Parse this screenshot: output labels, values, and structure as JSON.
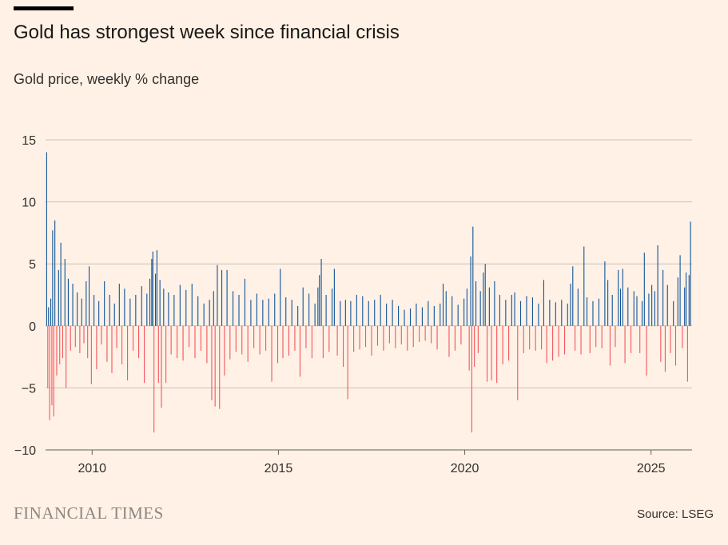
{
  "header": {
    "title": "Gold has strongest week since financial crisis",
    "subtitle": "Gold price, weekly % change"
  },
  "footer": {
    "brand": "FINANCIAL TIMES",
    "source": "Source: LSEG"
  },
  "colors": {
    "background": "#FFF1E5",
    "positive": "#0F5499",
    "negative": "#F2555E",
    "grid": "#CCC1B7",
    "text": "#33302E"
  },
  "chart_data": {
    "type": "bar",
    "title": "Gold has strongest week since financial crisis",
    "subtitle": "Gold price, weekly % change",
    "xlabel": "",
    "ylabel": "",
    "ylim": [
      -10,
      15
    ],
    "yticks": [
      15,
      10,
      5,
      0,
      -5,
      -10
    ],
    "xticks": [
      {
        "value": 2010,
        "label": "2010"
      },
      {
        "value": 2015,
        "label": "2015"
      },
      {
        "value": 2020,
        "label": "2020"
      },
      {
        "value": 2025,
        "label": "2025"
      }
    ],
    "xlim": [
      2008.75,
      2026.1
    ],
    "grid": true,
    "series": [
      {
        "name": "",
        "points": [
          [
            2008.78,
            14.0
          ],
          [
            2008.81,
            -5.0
          ],
          [
            2008.83,
            1.5
          ],
          [
            2008.86,
            -7.6
          ],
          [
            2008.89,
            2.2
          ],
          [
            2008.92,
            -6.4
          ],
          [
            2008.94,
            7.7
          ],
          [
            2008.97,
            -7.3
          ],
          [
            2009.0,
            8.5
          ],
          [
            2009.05,
            -4.0
          ],
          [
            2009.1,
            4.5
          ],
          [
            2009.13,
            -3.1
          ],
          [
            2009.16,
            6.7
          ],
          [
            2009.21,
            -2.6
          ],
          [
            2009.27,
            5.4
          ],
          [
            2009.3,
            -5.0
          ],
          [
            2009.36,
            3.8
          ],
          [
            2009.42,
            -2.0
          ],
          [
            2009.48,
            3.4
          ],
          [
            2009.55,
            -1.7
          ],
          [
            2009.6,
            2.7
          ],
          [
            2009.67,
            -2.2
          ],
          [
            2009.72,
            2.2
          ],
          [
            2009.78,
            -1.4
          ],
          [
            2009.84,
            3.6
          ],
          [
            2009.88,
            -2.6
          ],
          [
            2009.92,
            4.8
          ],
          [
            2009.98,
            -4.7
          ],
          [
            2010.05,
            2.5
          ],
          [
            2010.12,
            -3.5
          ],
          [
            2010.18,
            2.0
          ],
          [
            2010.25,
            -1.5
          ],
          [
            2010.33,
            3.6
          ],
          [
            2010.4,
            -2.9
          ],
          [
            2010.47,
            2.5
          ],
          [
            2010.53,
            -3.8
          ],
          [
            2010.6,
            1.8
          ],
          [
            2010.66,
            -1.8
          ],
          [
            2010.73,
            3.4
          ],
          [
            2010.8,
            -3.1
          ],
          [
            2010.87,
            3.0
          ],
          [
            2010.95,
            -4.4
          ],
          [
            2011.02,
            2.2
          ],
          [
            2011.1,
            -2.0
          ],
          [
            2011.17,
            2.5
          ],
          [
            2011.25,
            -2.6
          ],
          [
            2011.33,
            3.2
          ],
          [
            2011.4,
            -4.6
          ],
          [
            2011.47,
            2.6
          ],
          [
            2011.55,
            3.8
          ],
          [
            2011.6,
            5.4
          ],
          [
            2011.63,
            6.0
          ],
          [
            2011.66,
            -8.6
          ],
          [
            2011.7,
            4.2
          ],
          [
            2011.74,
            6.1
          ],
          [
            2011.78,
            -4.6
          ],
          [
            2011.82,
            3.7
          ],
          [
            2011.86,
            -6.6
          ],
          [
            2011.92,
            3.0
          ],
          [
            2011.98,
            -4.6
          ],
          [
            2012.05,
            2.7
          ],
          [
            2012.12,
            -2.3
          ],
          [
            2012.2,
            2.5
          ],
          [
            2012.28,
            -2.6
          ],
          [
            2012.36,
            3.3
          ],
          [
            2012.44,
            -2.8
          ],
          [
            2012.52,
            2.9
          ],
          [
            2012.6,
            -1.7
          ],
          [
            2012.68,
            3.4
          ],
          [
            2012.76,
            -2.6
          ],
          [
            2012.84,
            2.4
          ],
          [
            2012.92,
            -2.0
          ],
          [
            2013.0,
            1.8
          ],
          [
            2013.08,
            -3.0
          ],
          [
            2013.15,
            2.1
          ],
          [
            2013.21,
            -6.0
          ],
          [
            2013.26,
            2.8
          ],
          [
            2013.3,
            -6.5
          ],
          [
            2013.36,
            4.9
          ],
          [
            2013.42,
            -6.7
          ],
          [
            2013.48,
            4.5
          ],
          [
            2013.55,
            -4.0
          ],
          [
            2013.62,
            4.5
          ],
          [
            2013.7,
            -2.7
          ],
          [
            2013.78,
            2.8
          ],
          [
            2013.86,
            -2.1
          ],
          [
            2013.94,
            2.5
          ],
          [
            2014.02,
            -2.3
          ],
          [
            2014.1,
            3.8
          ],
          [
            2014.18,
            -2.9
          ],
          [
            2014.26,
            2.1
          ],
          [
            2014.34,
            -1.8
          ],
          [
            2014.42,
            2.6
          ],
          [
            2014.5,
            -2.3
          ],
          [
            2014.58,
            2.1
          ],
          [
            2014.66,
            -2.0
          ],
          [
            2014.74,
            2.2
          ],
          [
            2014.82,
            -4.5
          ],
          [
            2014.9,
            2.6
          ],
          [
            2014.98,
            -3.0
          ],
          [
            2015.05,
            4.6
          ],
          [
            2015.12,
            -2.6
          ],
          [
            2015.2,
            2.3
          ],
          [
            2015.28,
            -2.4
          ],
          [
            2015.36,
            2.1
          ],
          [
            2015.44,
            -2.0
          ],
          [
            2015.52,
            1.6
          ],
          [
            2015.58,
            -4.1
          ],
          [
            2015.66,
            3.1
          ],
          [
            2015.74,
            -1.8
          ],
          [
            2015.82,
            2.6
          ],
          [
            2015.9,
            -2.6
          ],
          [
            2015.98,
            1.8
          ],
          [
            2016.06,
            3.1
          ],
          [
            2016.1,
            4.1
          ],
          [
            2016.15,
            5.4
          ],
          [
            2016.2,
            -2.6
          ],
          [
            2016.28,
            2.5
          ],
          [
            2016.36,
            -2.1
          ],
          [
            2016.44,
            3.0
          ],
          [
            2016.5,
            4.6
          ],
          [
            2016.58,
            -2.4
          ],
          [
            2016.66,
            2.0
          ],
          [
            2016.74,
            -3.3
          ],
          [
            2016.8,
            2.1
          ],
          [
            2016.86,
            -5.9
          ],
          [
            2016.94,
            2.0
          ],
          [
            2017.02,
            -2.1
          ],
          [
            2017.1,
            2.5
          ],
          [
            2017.18,
            -1.9
          ],
          [
            2017.26,
            2.4
          ],
          [
            2017.34,
            -1.7
          ],
          [
            2017.42,
            2.0
          ],
          [
            2017.5,
            -2.4
          ],
          [
            2017.58,
            2.1
          ],
          [
            2017.66,
            -1.6
          ],
          [
            2017.74,
            2.5
          ],
          [
            2017.82,
            -2.0
          ],
          [
            2017.9,
            1.8
          ],
          [
            2017.98,
            -1.4
          ],
          [
            2018.06,
            2.1
          ],
          [
            2018.14,
            -1.8
          ],
          [
            2018.22,
            1.6
          ],
          [
            2018.3,
            -1.5
          ],
          [
            2018.38,
            1.3
          ],
          [
            2018.46,
            -2.0
          ],
          [
            2018.54,
            1.4
          ],
          [
            2018.62,
            -1.7
          ],
          [
            2018.7,
            1.8
          ],
          [
            2018.78,
            -1.3
          ],
          [
            2018.86,
            1.5
          ],
          [
            2018.94,
            -1.2
          ],
          [
            2019.02,
            2.0
          ],
          [
            2019.1,
            -1.4
          ],
          [
            2019.18,
            1.6
          ],
          [
            2019.26,
            -1.9
          ],
          [
            2019.34,
            1.8
          ],
          [
            2019.42,
            3.4
          ],
          [
            2019.5,
            2.8
          ],
          [
            2019.58,
            -2.5
          ],
          [
            2019.66,
            2.4
          ],
          [
            2019.74,
            -2.0
          ],
          [
            2019.82,
            1.7
          ],
          [
            2019.9,
            -1.5
          ],
          [
            2019.98,
            2.2
          ],
          [
            2020.06,
            3.0
          ],
          [
            2020.12,
            -3.6
          ],
          [
            2020.16,
            5.6
          ],
          [
            2020.19,
            -8.6
          ],
          [
            2020.22,
            8.0
          ],
          [
            2020.26,
            -3.3
          ],
          [
            2020.3,
            3.6
          ],
          [
            2020.36,
            -2.2
          ],
          [
            2020.42,
            2.8
          ],
          [
            2020.5,
            4.3
          ],
          [
            2020.55,
            5.0
          ],
          [
            2020.6,
            -4.5
          ],
          [
            2020.66,
            3.1
          ],
          [
            2020.72,
            -4.4
          ],
          [
            2020.8,
            3.6
          ],
          [
            2020.86,
            -4.6
          ],
          [
            2020.94,
            2.5
          ],
          [
            2021.02,
            -3.1
          ],
          [
            2021.1,
            2.1
          ],
          [
            2021.18,
            -2.8
          ],
          [
            2021.26,
            2.5
          ],
          [
            2021.34,
            2.7
          ],
          [
            2021.42,
            -6.0
          ],
          [
            2021.5,
            2.0
          ],
          [
            2021.58,
            -2.2
          ],
          [
            2021.66,
            2.4
          ],
          [
            2021.74,
            -1.9
          ],
          [
            2021.82,
            2.3
          ],
          [
            2021.9,
            -2.0
          ],
          [
            2021.98,
            1.8
          ],
          [
            2022.06,
            -1.9
          ],
          [
            2022.12,
            3.7
          ],
          [
            2022.2,
            -3.0
          ],
          [
            2022.28,
            2.1
          ],
          [
            2022.36,
            -2.8
          ],
          [
            2022.44,
            1.9
          ],
          [
            2022.52,
            -2.5
          ],
          [
            2022.6,
            2.1
          ],
          [
            2022.68,
            -2.3
          ],
          [
            2022.76,
            1.8
          ],
          [
            2022.84,
            3.4
          ],
          [
            2022.9,
            4.8
          ],
          [
            2022.96,
            -2.0
          ],
          [
            2023.04,
            3.0
          ],
          [
            2023.12,
            -2.3
          ],
          [
            2023.2,
            6.4
          ],
          [
            2023.28,
            2.3
          ],
          [
            2023.36,
            -2.2
          ],
          [
            2023.44,
            2.0
          ],
          [
            2023.52,
            -1.7
          ],
          [
            2023.6,
            2.2
          ],
          [
            2023.68,
            -1.8
          ],
          [
            2023.76,
            5.2
          ],
          [
            2023.84,
            3.7
          ],
          [
            2023.9,
            -3.2
          ],
          [
            2023.96,
            2.5
          ],
          [
            2024.04,
            -1.7
          ],
          [
            2024.12,
            4.5
          ],
          [
            2024.18,
            3.0
          ],
          [
            2024.24,
            4.6
          ],
          [
            2024.3,
            -3.0
          ],
          [
            2024.38,
            3.1
          ],
          [
            2024.46,
            -2.2
          ],
          [
            2024.54,
            2.8
          ],
          [
            2024.62,
            2.4
          ],
          [
            2024.7,
            -2.2
          ],
          [
            2024.76,
            2.0
          ],
          [
            2024.82,
            5.9
          ],
          [
            2024.88,
            -4.0
          ],
          [
            2024.94,
            2.6
          ],
          [
            2025.02,
            3.3
          ],
          [
            2025.1,
            2.8
          ],
          [
            2025.18,
            6.5
          ],
          [
            2025.26,
            -2.9
          ],
          [
            2025.32,
            4.5
          ],
          [
            2025.38,
            -3.7
          ],
          [
            2025.44,
            3.3
          ],
          [
            2025.52,
            -2.2
          ],
          [
            2025.6,
            2.0
          ],
          [
            2025.66,
            -3.2
          ],
          [
            2025.72,
            3.9
          ],
          [
            2025.78,
            5.7
          ],
          [
            2025.84,
            -1.8
          ],
          [
            2025.9,
            3.1
          ],
          [
            2025.94,
            4.3
          ],
          [
            2025.98,
            -4.5
          ],
          [
            2026.02,
            4.1
          ],
          [
            2026.06,
            8.4
          ]
        ]
      }
    ]
  }
}
